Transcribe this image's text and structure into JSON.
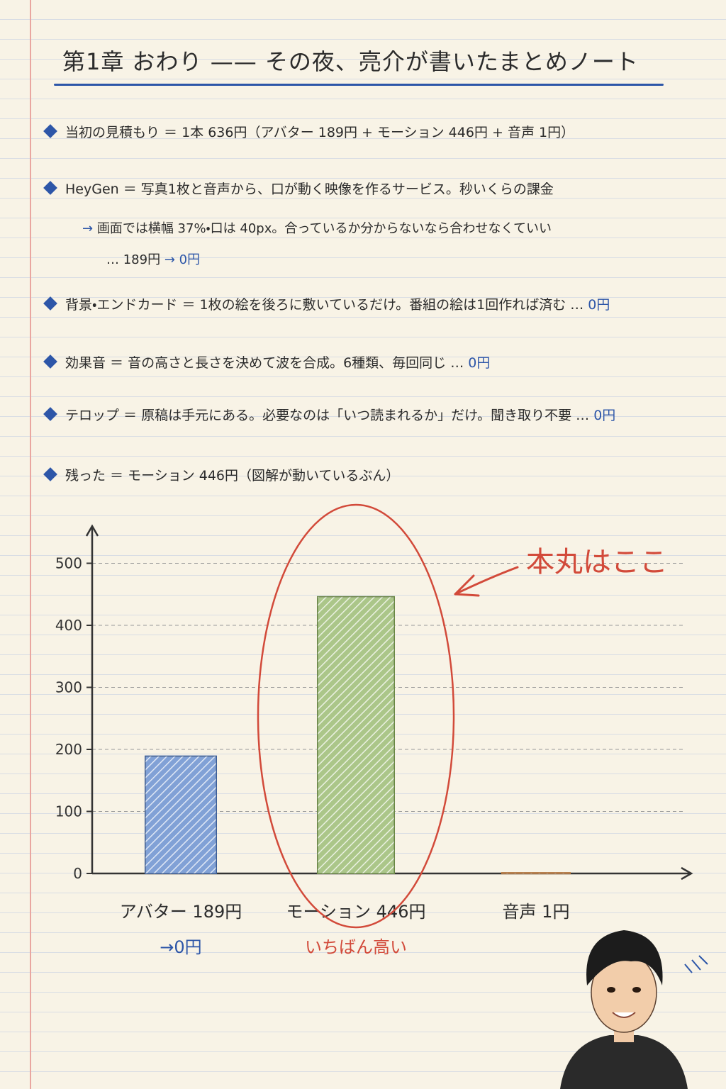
{
  "header": {
    "title": "第1章 おわり —— その夜、亮介が書いたまとめノート"
  },
  "notes": [
    {
      "text": "当初の見積もり ＝ 1本 636円（アバター 189円 + モーション 446円 + 音声 1円）"
    },
    {
      "text": "HeyGen ＝ 写真1枚と音声から、口が動く映像を作るサービス。秒いくらの課金",
      "detail": "画面では横幅 37%・口は 40px。合っているか分からないなら合わせなくていい",
      "before": "… 189円",
      "result": "→ 0円"
    },
    {
      "text": "背景・エンドカード ＝ 1枚の絵を後ろに敷いているだけ。番組の絵は1回作れば済む …",
      "result": "0円"
    },
    {
      "text": "効果音 ＝ 音の高さと長さを決めて波を合成。6種類、毎回同じ …",
      "result": "0円"
    },
    {
      "text": "テロップ ＝ 原稿は手元にある。必要なのは「いつ読まれるか」だけ。聞き取り不要 …",
      "result": "0円"
    },
    {
      "text": "残った ＝ モーション 446円（図解が動いているぶん）"
    }
  ],
  "chart_data": {
    "type": "bar",
    "categories": [
      "アバター 189円",
      "モーション 446円",
      "音声 1円"
    ],
    "category_notes": [
      "→0円",
      "いちばん高い",
      null
    ],
    "values": [
      189,
      446,
      1
    ],
    "colors": [
      "#3d6fc0",
      "#7ea84a",
      "#e08a3c"
    ],
    "ylim": [
      0,
      560
    ],
    "yticks": [
      0,
      100,
      200,
      300,
      400,
      500
    ],
    "grid": true,
    "annotation": "本丸はここ"
  }
}
